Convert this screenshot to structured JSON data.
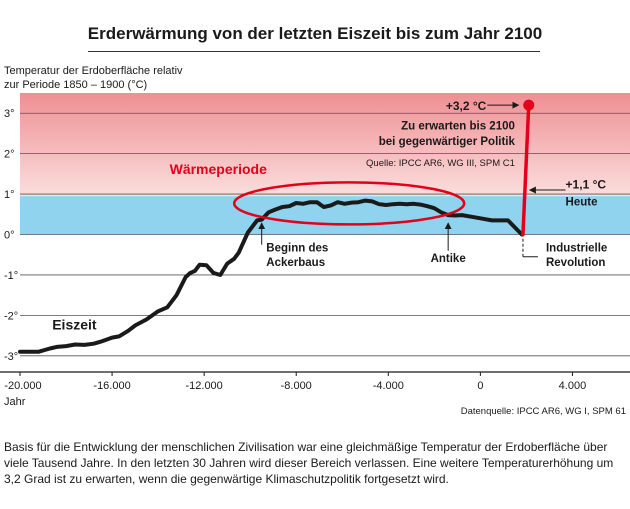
{
  "chart_data": {
    "type": "line",
    "title": "Erderwärmung von der letzten Eiszeit bis zum Jahr 2100",
    "ylabel_line1": "Temperatur der Erdoberfläche relativ",
    "ylabel_line2": "zur Periode 1850 – 1900 (°C)",
    "xlabel": "Jahr",
    "xlim": [
      -20000,
      6500
    ],
    "ylim": [
      -3.4,
      3.5
    ],
    "x_ticks": [
      -20000,
      -16000,
      -12000,
      -8000,
      -4000,
      0,
      4000
    ],
    "x_tick_labels": [
      "-20.000",
      "-16.000",
      "-12.000",
      "-8.000",
      "-4.000",
      "0",
      "4.000"
    ],
    "y_ticks": [
      -3,
      -2,
      -1,
      0,
      1,
      2,
      3
    ],
    "y_tick_labels": [
      "-3°",
      "-2°",
      "-1°",
      "0°",
      "1°",
      "2°",
      "3°"
    ],
    "grid": true,
    "series": [
      {
        "x": [
          -20000,
          -19200,
          -18700,
          -18400,
          -18000,
          -17600,
          -17200,
          -16800,
          -16500,
          -16000,
          -15700,
          -15300,
          -15000,
          -14500,
          -14000,
          -13600,
          -13200,
          -12800,
          -12600,
          -12400,
          -12200,
          -11900,
          -11600,
          -11300,
          -11000,
          -10700,
          -10500,
          -10300,
          -10100,
          -9900,
          -9700,
          -9500,
          -9200,
          -8900,
          -8600,
          -8300,
          -8000,
          -7700,
          -7400,
          -7100,
          -6800,
          -6500,
          -6200,
          -5900,
          -5600,
          -5300,
          -5000,
          -4700,
          -4400,
          -4100,
          -3800,
          -3500,
          -3200,
          -2900,
          -2600,
          -2300,
          -2000,
          -1700,
          -1400,
          -1100,
          -800,
          -500,
          0,
          500,
          1200,
          1800
        ],
        "y": [
          -2.9,
          -2.9,
          -2.82,
          -2.78,
          -2.76,
          -2.72,
          -2.73,
          -2.7,
          -2.65,
          -2.55,
          -2.52,
          -2.38,
          -2.25,
          -2.1,
          -1.9,
          -1.8,
          -1.5,
          -1.05,
          -0.95,
          -0.9,
          -0.75,
          -0.76,
          -0.95,
          -1.0,
          -0.72,
          -0.6,
          -0.45,
          -0.2,
          0.05,
          0.2,
          0.35,
          0.37,
          0.55,
          0.62,
          0.68,
          0.7,
          0.78,
          0.76,
          0.8,
          0.8,
          0.68,
          0.72,
          0.8,
          0.76,
          0.79,
          0.8,
          0.84,
          0.82,
          0.75,
          0.73,
          0.75,
          0.76,
          0.75,
          0.76,
          0.74,
          0.7,
          0.65,
          0.55,
          0.48,
          0.47,
          0.48,
          0.45,
          0.4,
          0.35,
          0.35,
          0.0
        ]
      },
      {
        "x": [
          1850,
          2100
        ],
        "y": [
          0.0,
          3.2
        ]
      }
    ],
    "bands": [
      {
        "from": 0.0,
        "to": 0.95,
        "color": "#8fd3ee"
      },
      {
        "from": 0.95,
        "to": 3.5,
        "color_low": "#fbdede",
        "color_high": "#ef8f92"
      }
    ],
    "annotations": {
      "eiszeit": "Eiszeit",
      "waermeperiode": "Wärmeperiode",
      "beginn_line1": "Beginn des",
      "beginn_line2": "Ackerbaus",
      "antike": "Antike",
      "industrie_line1": "Industrielle",
      "industrie_line2": "Revolution",
      "heute_value": "+1,1 °C",
      "heute": "Heute",
      "endpoint_value": "+3,2 °C",
      "erwarten_line1": "Zu erwarten bis 2100",
      "erwarten_line2": "bei gegenwärtiger Politik",
      "quelle": "Quelle: IPCC AR6, WG III, SPM C1",
      "datenquelle": "Datenquelle: IPCC AR6, WG I, SPM 61"
    },
    "colors": {
      "line": "#1a1a1a",
      "forecast": "#e2001a",
      "accent": "#e2001a",
      "grid": "#555555"
    }
  },
  "caption": "Basis für die Entwicklung der menschlichen Zivilisation war eine gleichmäßige Temperatur der Erdoberfläche über viele Tausend Jahre. In den letzten 30 Jahren wird dieser Bereich verlassen. Eine weitere Temperatur­erhöhung um 3,2 Grad ist zu erwarten, wenn die gegenwärtige Klimaschutzpolitik fortgesetzt wird."
}
